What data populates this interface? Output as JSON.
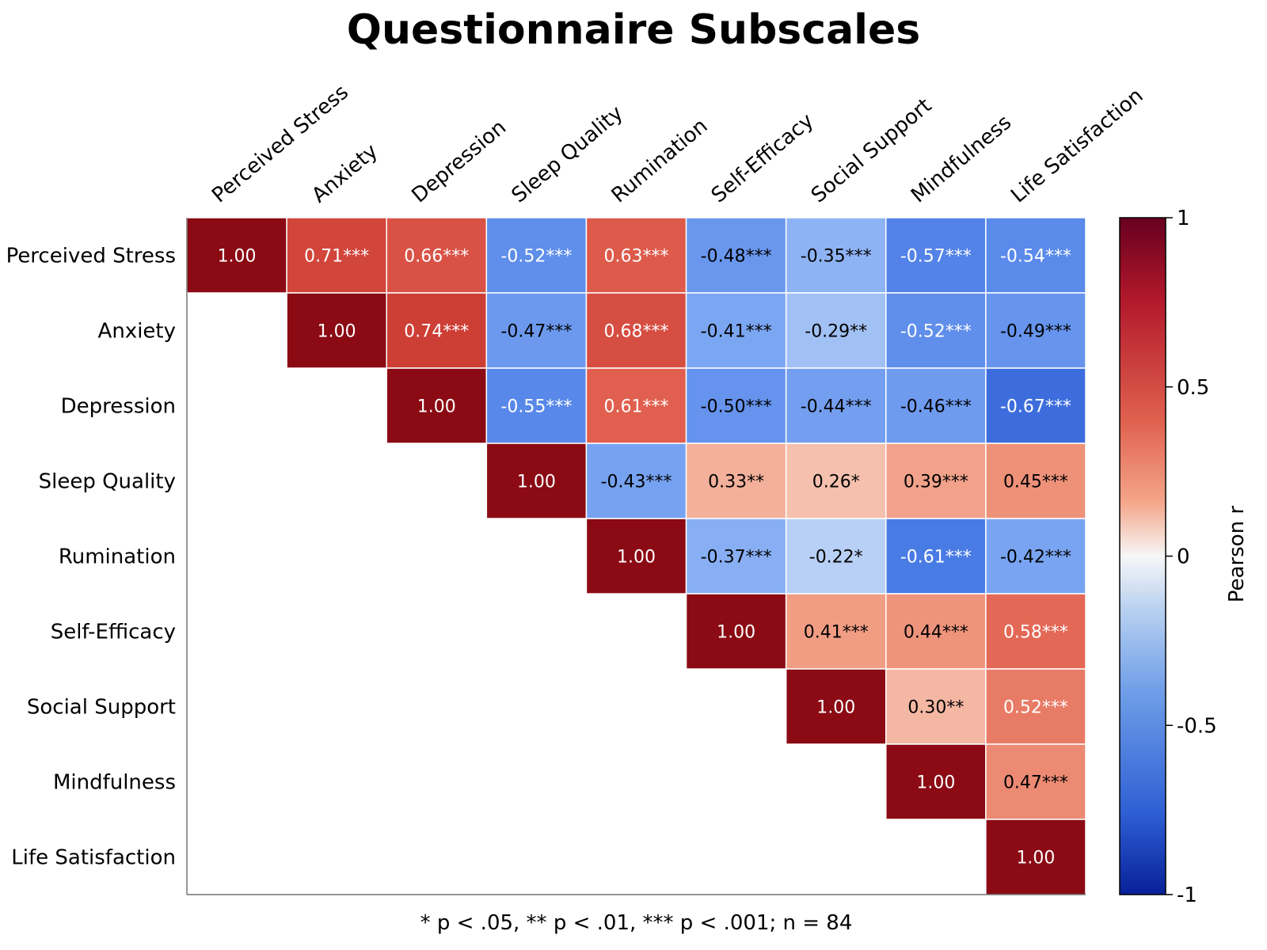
{
  "chart_data": {
    "type": "heatmap",
    "title": "Questionnaire Subscales",
    "variables": [
      "Perceived Stress",
      "Anxiety",
      "Depression",
      "Sleep Quality",
      "Rumination",
      "Self-Efficacy",
      "Social Support",
      "Mindfulness",
      "Life Satisfaction"
    ],
    "matrix_shape": "upper-triangle",
    "values": [
      [
        1.0,
        0.71,
        0.66,
        -0.52,
        0.63,
        -0.48,
        -0.35,
        -0.57,
        -0.54
      ],
      [
        null,
        1.0,
        0.74,
        -0.47,
        0.68,
        -0.41,
        -0.29,
        -0.52,
        -0.49
      ],
      [
        null,
        null,
        1.0,
        -0.55,
        0.61,
        -0.5,
        -0.44,
        -0.46,
        -0.67
      ],
      [
        null,
        null,
        null,
        1.0,
        -0.43,
        0.33,
        0.26,
        0.39,
        0.45
      ],
      [
        null,
        null,
        null,
        null,
        1.0,
        -0.37,
        -0.22,
        -0.61,
        -0.42
      ],
      [
        null,
        null,
        null,
        null,
        null,
        1.0,
        0.41,
        0.44,
        0.58
      ],
      [
        null,
        null,
        null,
        null,
        null,
        null,
        1.0,
        0.3,
        0.52
      ],
      [
        null,
        null,
        null,
        null,
        null,
        null,
        null,
        1.0,
        0.47
      ],
      [
        null,
        null,
        null,
        null,
        null,
        null,
        null,
        null,
        1.0
      ]
    ],
    "labels": [
      [
        "1.00",
        "0.71***",
        "0.66***",
        "-0.52***",
        "0.63***",
        "-0.48***",
        "-0.35***",
        "-0.57***",
        "-0.54***"
      ],
      [
        "",
        "1.00",
        "0.74***",
        "-0.47***",
        "0.68***",
        "-0.41***",
        "-0.29**",
        "-0.52***",
        "-0.49***"
      ],
      [
        "",
        "",
        "1.00",
        "-0.55***",
        "0.61***",
        "-0.50***",
        "-0.44***",
        "-0.46***",
        "-0.67***"
      ],
      [
        "",
        "",
        "",
        "1.00",
        "-0.43***",
        "0.33**",
        "0.26*",
        "0.39***",
        "0.45***"
      ],
      [
        "",
        "",
        "",
        "",
        "1.00",
        "-0.37***",
        "-0.22*",
        "-0.61***",
        "-0.42***"
      ],
      [
        "",
        "",
        "",
        "",
        "",
        "1.00",
        "0.41***",
        "0.44***",
        "0.58***"
      ],
      [
        "",
        "",
        "",
        "",
        "",
        "",
        "1.00",
        "0.30**",
        "0.52***"
      ],
      [
        "",
        "",
        "",
        "",
        "",
        "",
        "",
        "1.00",
        "0.47***"
      ],
      [
        "",
        "",
        "",
        "",
        "",
        "",
        "",
        "",
        "1.00"
      ]
    ],
    "colorbar": {
      "label": "Pearson r",
      "range": [
        -1,
        1
      ],
      "ticks": [
        1,
        0.5,
        0,
        -0.5,
        -1
      ],
      "tick_labels": [
        "1",
        "0.5",
        "0",
        "-0.5",
        "-1"
      ],
      "colormap": "coolwarm",
      "colors": {
        "low": "#053061",
        "mid": "#f7f7f7",
        "high": "#8b0a14"
      }
    },
    "footnote": "* p < .05, ** p < .01, *** p < .001; n = 84",
    "grid": false
  }
}
